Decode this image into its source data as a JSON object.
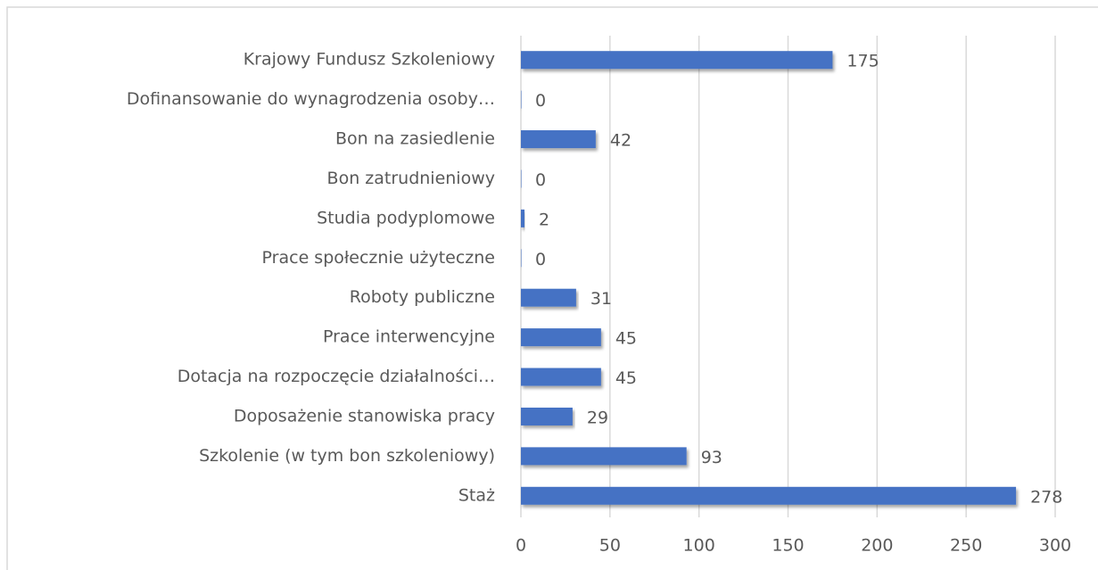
{
  "chart_data": {
    "type": "barh",
    "categories": [
      "Krajowy Fundusz Szkoleniowy",
      "Dofinansowanie do wynagrodzenia osoby…",
      "Bon na zasiedlenie",
      "Bon zatrudnieniowy",
      "Studia podyplomowe",
      "Prace społecznie użyteczne",
      "Roboty publiczne",
      "Prace interwencyjne",
      "Dotacja na rozpoczęcie działalności…",
      "Doposażenie stanowiska pracy",
      "Szkolenie (w tym bon szkoleniowy)",
      "Staż"
    ],
    "values": [
      175,
      0,
      42,
      0,
      2,
      0,
      31,
      45,
      45,
      29,
      93,
      278
    ],
    "color": "#4472c4",
    "xlim": [
      0,
      300
    ],
    "xticks": [
      0,
      50,
      100,
      150,
      200,
      250,
      300
    ],
    "grid": true
  }
}
